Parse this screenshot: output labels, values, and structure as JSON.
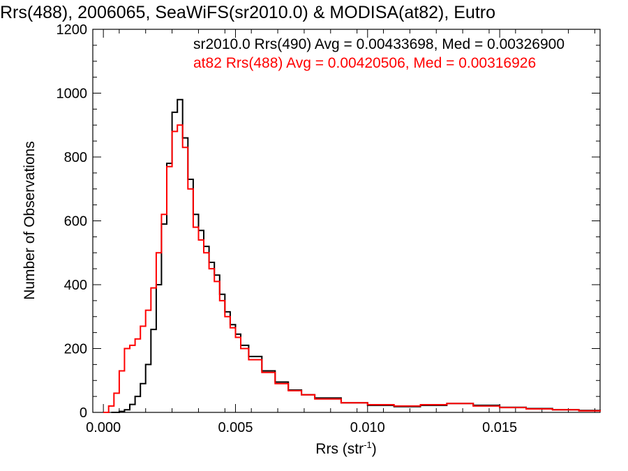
{
  "chart_data": {
    "type": "line",
    "title": "Rrs(488), 2006065, SeaWiFS(sr2010.0) & MODISA(at82), Eutro",
    "xlabel_base": "Rrs (str",
    "xlabel_sup": "-1",
    "xlabel_close": ")",
    "ylabel": "Number of Observations",
    "xlim": [
      -0.0004,
      0.0188
    ],
    "ylim": [
      0,
      1200
    ],
    "x_ticks": [
      "0.000",
      "0.005",
      "0.010",
      "0.015"
    ],
    "x_tick_values": [
      0.0,
      0.005,
      0.01,
      0.015
    ],
    "y_ticks": [
      "0",
      "200",
      "400",
      "600",
      "800",
      "1000",
      "1200"
    ],
    "y_tick_values": [
      0,
      200,
      400,
      600,
      800,
      1000,
      1200
    ],
    "grid": false,
    "series": [
      {
        "name": "sr2010.0 Rrs(490) Avg = 0.00433698, Med = 0.00326900",
        "color": "#000000",
        "points": [
          [
            0.0003,
            0
          ],
          [
            0.0006,
            3
          ],
          [
            0.0008,
            8
          ],
          [
            0.001,
            25
          ],
          [
            0.0012,
            50
          ],
          [
            0.0014,
            90
          ],
          [
            0.0016,
            150
          ],
          [
            0.0018,
            260
          ],
          [
            0.002,
            400
          ],
          [
            0.0022,
            590
          ],
          [
            0.0024,
            780
          ],
          [
            0.0026,
            940
          ],
          [
            0.0028,
            980
          ],
          [
            0.003,
            860
          ],
          [
            0.0032,
            730
          ],
          [
            0.0034,
            620
          ],
          [
            0.0036,
            570
          ],
          [
            0.0038,
            520
          ],
          [
            0.004,
            470
          ],
          [
            0.0042,
            430
          ],
          [
            0.0044,
            370
          ],
          [
            0.0046,
            315
          ],
          [
            0.0048,
            275
          ],
          [
            0.005,
            245
          ],
          [
            0.0052,
            210
          ],
          [
            0.0055,
            175
          ],
          [
            0.006,
            130
          ],
          [
            0.0065,
            95
          ],
          [
            0.007,
            70
          ],
          [
            0.0075,
            55
          ],
          [
            0.008,
            45
          ],
          [
            0.009,
            30
          ],
          [
            0.01,
            22
          ],
          [
            0.011,
            18
          ],
          [
            0.012,
            22
          ],
          [
            0.013,
            28
          ],
          [
            0.014,
            22
          ],
          [
            0.015,
            16
          ],
          [
            0.016,
            12
          ],
          [
            0.017,
            8
          ],
          [
            0.018,
            6
          ],
          [
            0.0188,
            4
          ]
        ]
      },
      {
        "name": "at82 Rrs(488) Avg = 0.00420506, Med = 0.00316926",
        "color": "#ff0000",
        "points": [
          [
            0.0,
            0
          ],
          [
            0.0002,
            20
          ],
          [
            0.0004,
            60
          ],
          [
            0.0006,
            130
          ],
          [
            0.0008,
            200
          ],
          [
            0.001,
            210
          ],
          [
            0.0012,
            230
          ],
          [
            0.0014,
            270
          ],
          [
            0.0016,
            320
          ],
          [
            0.0018,
            390
          ],
          [
            0.002,
            500
          ],
          [
            0.0022,
            620
          ],
          [
            0.0024,
            770
          ],
          [
            0.0026,
            880
          ],
          [
            0.0028,
            900
          ],
          [
            0.003,
            830
          ],
          [
            0.0032,
            700
          ],
          [
            0.0034,
            580
          ],
          [
            0.0036,
            540
          ],
          [
            0.0038,
            500
          ],
          [
            0.004,
            450
          ],
          [
            0.0042,
            410
          ],
          [
            0.0044,
            350
          ],
          [
            0.0046,
            300
          ],
          [
            0.0048,
            265
          ],
          [
            0.005,
            235
          ],
          [
            0.0052,
            200
          ],
          [
            0.0055,
            165
          ],
          [
            0.006,
            125
          ],
          [
            0.0065,
            90
          ],
          [
            0.007,
            68
          ],
          [
            0.0075,
            55
          ],
          [
            0.008,
            42
          ],
          [
            0.009,
            30
          ],
          [
            0.01,
            24
          ],
          [
            0.011,
            20
          ],
          [
            0.012,
            24
          ],
          [
            0.013,
            28
          ],
          [
            0.014,
            20
          ],
          [
            0.015,
            15
          ],
          [
            0.016,
            11
          ],
          [
            0.017,
            8
          ],
          [
            0.018,
            5
          ],
          [
            0.0188,
            3
          ]
        ]
      }
    ]
  }
}
